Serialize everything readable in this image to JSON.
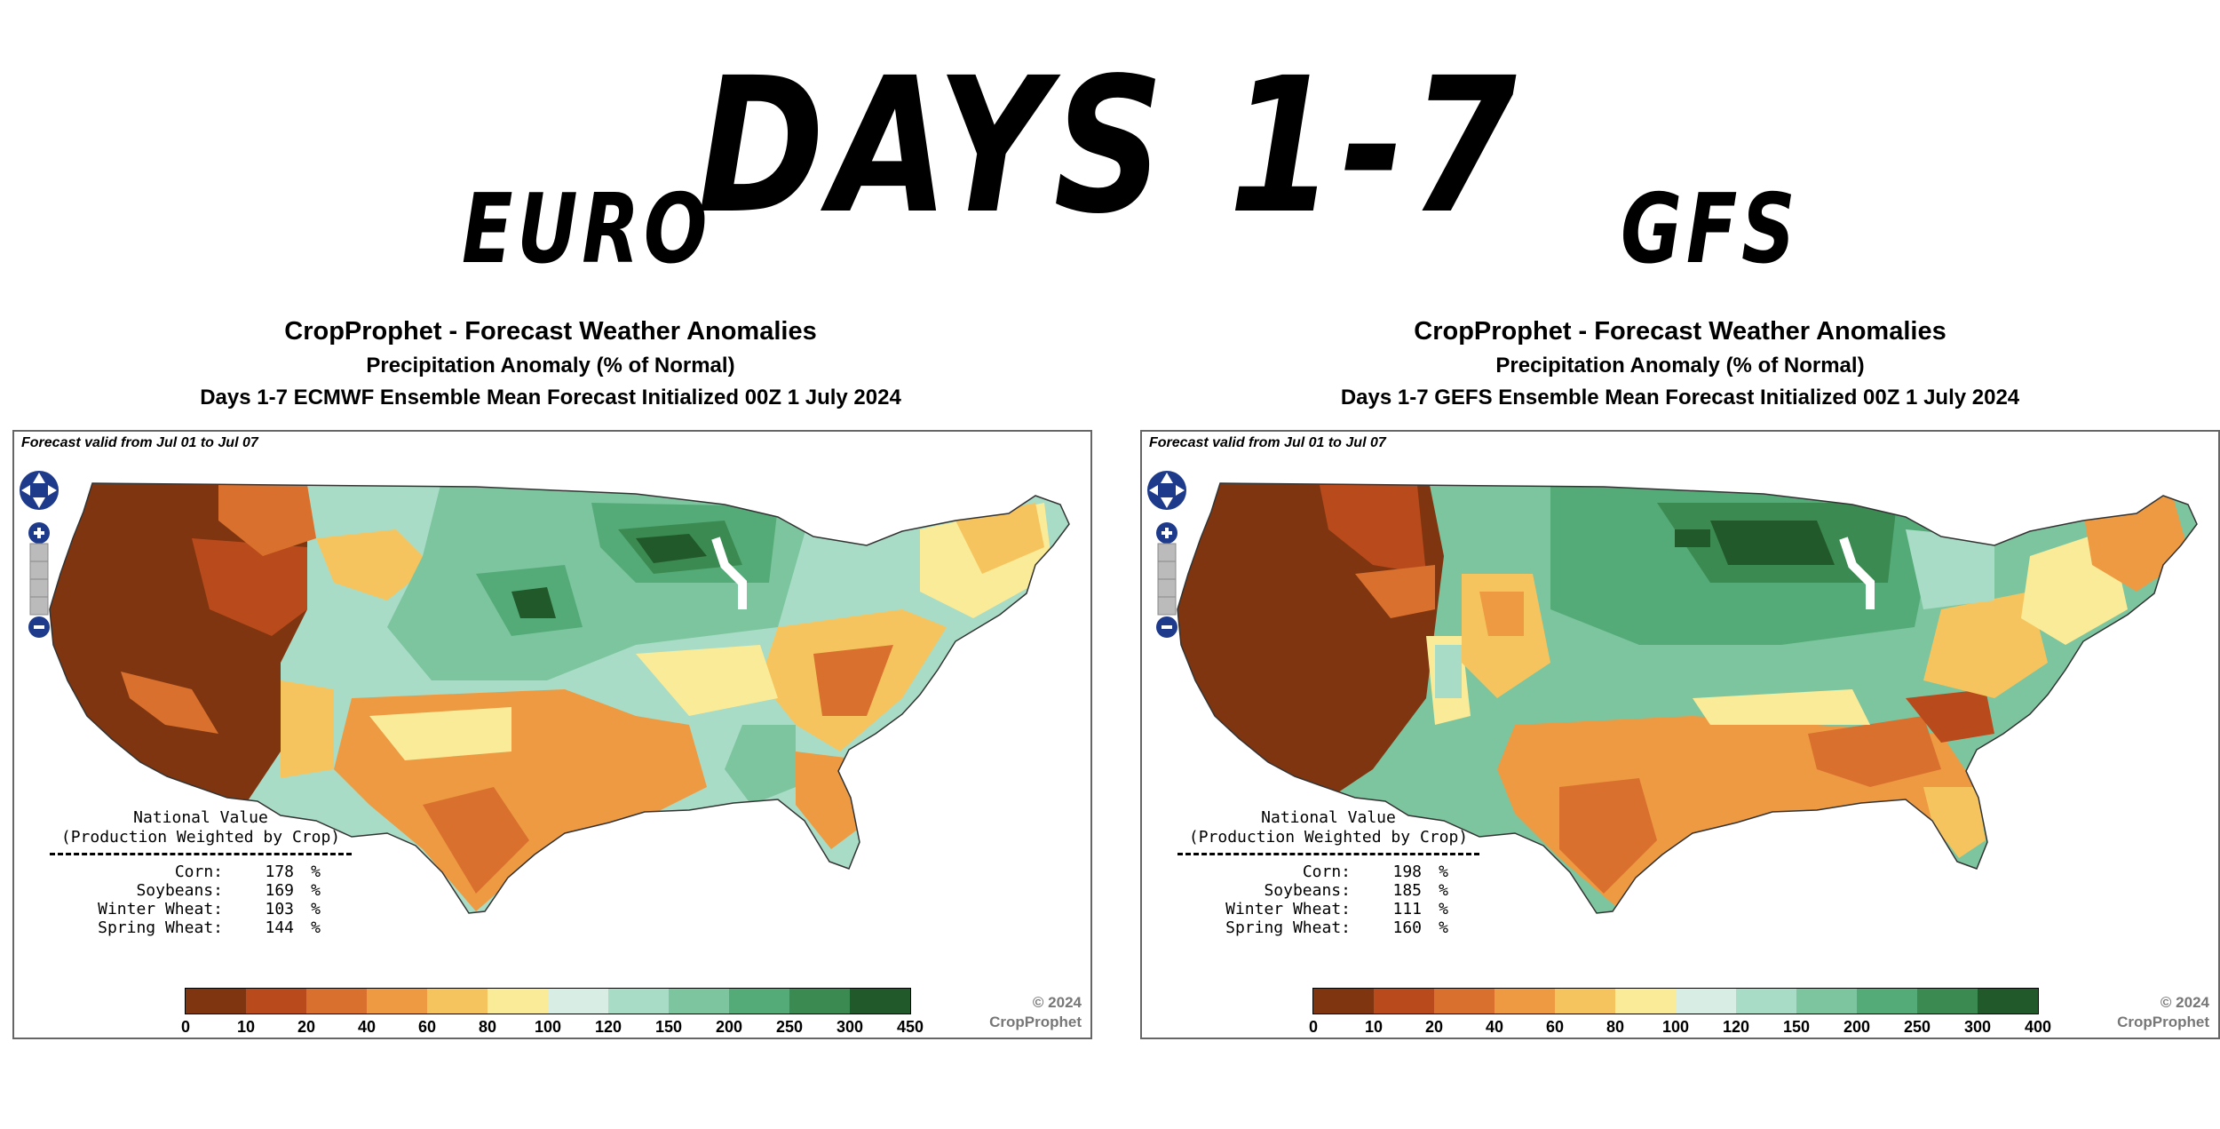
{
  "headline": "DAYS 1-7",
  "panels": [
    {
      "model_label": "EURO",
      "title": "CropProphet - Forecast Weather Anomalies",
      "subtitle": "Precipitation Anomaly (% of Normal)",
      "run": "Days 1-7 ECMWF Ensemble Mean Forecast Initialized 00Z 1 July 2024",
      "valid": "Forecast valid from Jul 01 to Jul 07",
      "national_heading_1": "National Value",
      "national_heading_2": "(Production Weighted by Crop)",
      "national": [
        {
          "crop": "Corn:",
          "value": "178",
          "unit": "%"
        },
        {
          "crop": "Soybeans:",
          "value": "169",
          "unit": "%"
        },
        {
          "crop": "Winter Wheat:",
          "value": "103",
          "unit": "%"
        },
        {
          "crop": "Spring Wheat:",
          "value": "144",
          "unit": "%"
        }
      ],
      "copyright_1": "© 2024",
      "copyright_2": "CropProphet",
      "legend_ticks": [
        "0",
        "10",
        "20",
        "40",
        "60",
        "80",
        "100",
        "120",
        "150",
        "200",
        "250",
        "300",
        "450"
      ]
    },
    {
      "model_label": "GFS",
      "title": "CropProphet - Forecast Weather Anomalies",
      "subtitle": "Precipitation Anomaly (% of Normal)",
      "run": "Days 1-7 GEFS Ensemble Mean Forecast Initialized 00Z 1 July 2024",
      "valid": "Forecast valid from Jul 01 to Jul 07",
      "national_heading_1": "National Value",
      "national_heading_2": "(Production Weighted by Crop)",
      "national": [
        {
          "crop": "Corn:",
          "value": "198",
          "unit": "%"
        },
        {
          "crop": "Soybeans:",
          "value": "185",
          "unit": "%"
        },
        {
          "crop": "Winter Wheat:",
          "value": "111",
          "unit": "%"
        },
        {
          "crop": "Spring Wheat:",
          "value": "160",
          "unit": "%"
        }
      ],
      "copyright_1": "© 2024",
      "copyright_2": "CropProphet",
      "legend_ticks": [
        "0",
        "10",
        "20",
        "40",
        "60",
        "80",
        "100",
        "120",
        "150",
        "200",
        "250",
        "300",
        "400"
      ]
    }
  ],
  "legend_colors": [
    "#7f3510",
    "#b94a1c",
    "#d9702e",
    "#ee9a42",
    "#f6c45e",
    "#faeb98",
    "#d8eee4",
    "#a8dcc6",
    "#7dc59f",
    "#54ab78",
    "#3b8a52",
    "#21592a"
  ]
}
